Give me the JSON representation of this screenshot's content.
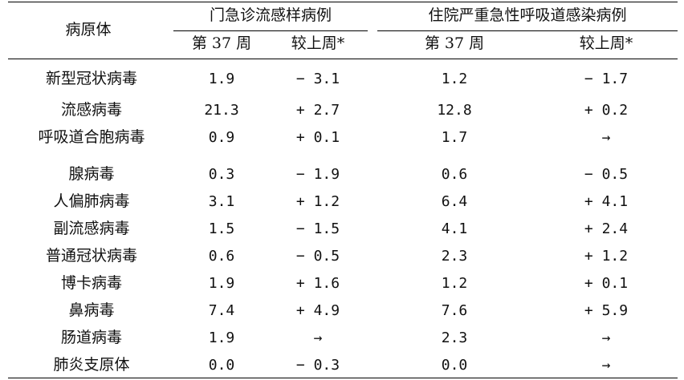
{
  "table": {
    "header": {
      "pathogen": "病原体",
      "group_outpatient": "门急诊流感样病例",
      "group_inpatient": "住院严重急性呼吸道感染病例",
      "week": "第 37 周",
      "change": "较上周*"
    },
    "rows": [
      {
        "name": "新型冠状病毒",
        "op_week": "1.9",
        "op_change": "− 3.1",
        "ip_week": "1.2",
        "ip_change": "− 1.7"
      },
      {
        "name": "流感病毒",
        "op_week": "21.3",
        "op_change": "+ 2.7",
        "ip_week": "12.8",
        "ip_change": "+ 0.2"
      },
      {
        "name": "呼吸道合胞病毒",
        "op_week": "0.9",
        "op_change": "+ 0.1",
        "ip_week": "1.7",
        "ip_change": "→"
      },
      {
        "name": "腺病毒",
        "op_week": "0.3",
        "op_change": "− 1.9",
        "ip_week": "0.6",
        "ip_change": "− 0.5"
      },
      {
        "name": "人偏肺病毒",
        "op_week": "3.1",
        "op_change": "+ 1.2",
        "ip_week": "6.4",
        "ip_change": "+ 4.1"
      },
      {
        "name": "副流感病毒",
        "op_week": "1.5",
        "op_change": "− 1.5",
        "ip_week": "4.1",
        "ip_change": "+ 2.4"
      },
      {
        "name": "普通冠状病毒",
        "op_week": "0.6",
        "op_change": "− 0.5",
        "ip_week": "2.3",
        "ip_change": "+ 1.2"
      },
      {
        "name": "博卡病毒",
        "op_week": "1.9",
        "op_change": "+ 1.6",
        "ip_week": "1.2",
        "ip_change": "+ 0.1"
      },
      {
        "name": "鼻病毒",
        "op_week": "7.4",
        "op_change": "+ 4.9",
        "ip_week": "7.6",
        "ip_change": "+ 5.9"
      },
      {
        "name": "肠道病毒",
        "op_week": "1.9",
        "op_change": "→",
        "ip_week": "2.3",
        "ip_change": "→"
      },
      {
        "name": "肺炎支原体",
        "op_week": "0.0",
        "op_change": "− 0.3",
        "ip_week": "0.0",
        "ip_change": "→"
      }
    ]
  }
}
